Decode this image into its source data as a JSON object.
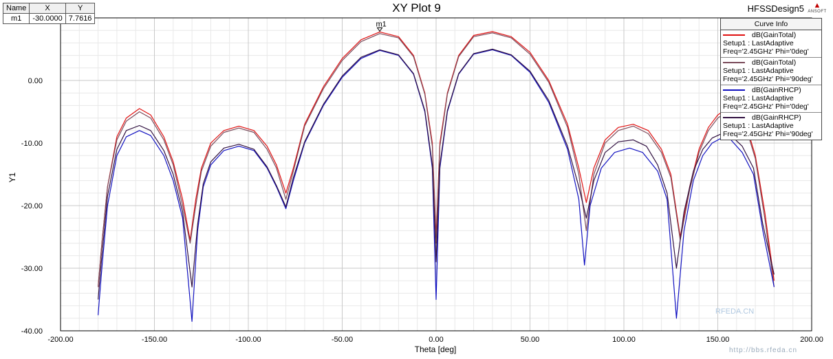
{
  "design_name": "HFSSDesign5",
  "logo_text": "ANSOFT",
  "marker_table": {
    "headers": [
      "Name",
      "X",
      "Y"
    ],
    "rows": [
      [
        "m1",
        "-30.0000",
        "7.7616"
      ]
    ]
  },
  "legend": {
    "title": "Curve Info",
    "entries": [
      {
        "name": "dB(GainTotal)",
        "line2": "Setup1 : LastAdaptive",
        "line3": "Freq='2.45GHz' Phi='0deg'",
        "color": "#e01010"
      },
      {
        "name": "dB(GainTotal)",
        "line2": "Setup1 : LastAdaptive",
        "line3": "Freq='2.45GHz' Phi='90deg'",
        "color": "#7a4a5a"
      },
      {
        "name": "dB(GainRHCP)",
        "line2": "Setup1 : LastAdaptive",
        "line3": "Freq='2.45GHz' Phi='0deg'",
        "color": "#1010c0"
      },
      {
        "name": "dB(GainRHCP)",
        "line2": "Setup1 : LastAdaptive",
        "line3": "Freq='2.45GHz' Phi='90deg'",
        "color": "#301040"
      }
    ]
  },
  "watermark": "RFEDA.CN",
  "watermark_url": "http://bbs.rfeda.cn",
  "chart_data": {
    "type": "line",
    "title": "XY Plot 9",
    "xlabel": "Theta [deg]",
    "ylabel": "Y1",
    "xlim": [
      -200,
      200
    ],
    "ylim": [
      -40,
      10
    ],
    "x_ticks": [
      -200,
      -150,
      -100,
      -50,
      0,
      50,
      100,
      150,
      200
    ],
    "x_tick_labels": [
      "-200.00",
      "-150.00",
      "-100.00",
      "-50.00",
      "0.00",
      "50.00",
      "100.00",
      "150.00",
      "200.00"
    ],
    "y_ticks": [
      0,
      -10,
      -20,
      -30,
      -40
    ],
    "y_tick_labels": [
      "0.00",
      "-10.00",
      "-20.00",
      "-30.00",
      "-40.00"
    ],
    "grid": true,
    "legend_position": "top-right",
    "marker": {
      "name": "m1",
      "x": -30,
      "y": 7.7616
    },
    "series": [
      {
        "name": "dB(GainTotal) Setup1 : LastAdaptive Freq='2.45GHz' Phi='0deg'",
        "color": "#e01010",
        "points": [
          [
            -180,
            -33
          ],
          [
            -178,
            -26
          ],
          [
            -175,
            -17
          ],
          [
            -170,
            -9
          ],
          [
            -165,
            -6
          ],
          [
            -158,
            -4.5
          ],
          [
            -152,
            -5.5
          ],
          [
            -145,
            -9
          ],
          [
            -140,
            -13
          ],
          [
            -135,
            -19
          ],
          [
            -131,
            -25.5
          ],
          [
            -128,
            -19
          ],
          [
            -125,
            -14
          ],
          [
            -120,
            -10
          ],
          [
            -113,
            -8
          ],
          [
            -105,
            -7.3
          ],
          [
            -97,
            -8
          ],
          [
            -90,
            -10.5
          ],
          [
            -85,
            -13.5
          ],
          [
            -80,
            -18
          ],
          [
            -76,
            -14
          ],
          [
            -70,
            -7
          ],
          [
            -60,
            -1
          ],
          [
            -50,
            3.5
          ],
          [
            -40,
            6.5
          ],
          [
            -30,
            7.76
          ],
          [
            -20,
            7
          ],
          [
            -12,
            4
          ],
          [
            -6,
            -2
          ],
          [
            -2,
            -10
          ],
          [
            0,
            -25
          ],
          [
            2,
            -10
          ],
          [
            6,
            -2
          ],
          [
            12,
            4
          ],
          [
            20,
            7.2
          ],
          [
            30,
            7.8
          ],
          [
            40,
            7
          ],
          [
            50,
            4.5
          ],
          [
            60,
            0
          ],
          [
            70,
            -7
          ],
          [
            76,
            -14
          ],
          [
            80,
            -19.5
          ],
          [
            84,
            -14
          ],
          [
            90,
            -9.5
          ],
          [
            97,
            -7.5
          ],
          [
            105,
            -7
          ],
          [
            113,
            -8
          ],
          [
            120,
            -11
          ],
          [
            125,
            -15
          ],
          [
            130,
            -25
          ],
          [
            135,
            -17
          ],
          [
            140,
            -11
          ],
          [
            145,
            -7.5
          ],
          [
            150,
            -5.5
          ],
          [
            155,
            -4.5
          ],
          [
            160,
            -5
          ],
          [
            165,
            -7
          ],
          [
            170,
            -12
          ],
          [
            175,
            -21
          ],
          [
            180,
            -32
          ]
        ]
      },
      {
        "name": "dB(GainTotal) Setup1 : LastAdaptive Freq='2.45GHz' Phi='90deg'",
        "color": "#7a4a5a",
        "points": [
          [
            -180,
            -33
          ],
          [
            -178,
            -26
          ],
          [
            -175,
            -17
          ],
          [
            -170,
            -9.5
          ],
          [
            -165,
            -6.5
          ],
          [
            -158,
            -5
          ],
          [
            -152,
            -6
          ],
          [
            -145,
            -9.5
          ],
          [
            -140,
            -13.5
          ],
          [
            -135,
            -20
          ],
          [
            -131,
            -26
          ],
          [
            -128,
            -20
          ],
          [
            -125,
            -14.5
          ],
          [
            -120,
            -10.5
          ],
          [
            -113,
            -8.3
          ],
          [
            -105,
            -7.6
          ],
          [
            -97,
            -8.3
          ],
          [
            -90,
            -11
          ],
          [
            -85,
            -14
          ],
          [
            -80,
            -19
          ],
          [
            -76,
            -14.5
          ],
          [
            -70,
            -7.3
          ],
          [
            -60,
            -1.3
          ],
          [
            -50,
            3.2
          ],
          [
            -40,
            6.2
          ],
          [
            -30,
            7.5
          ],
          [
            -20,
            6.8
          ],
          [
            -12,
            3.8
          ],
          [
            -6,
            -2.2
          ],
          [
            -2,
            -10.5
          ],
          [
            0,
            -26
          ],
          [
            2,
            -10.5
          ],
          [
            6,
            -2.2
          ],
          [
            12,
            3.8
          ],
          [
            20,
            7
          ],
          [
            30,
            7.6
          ],
          [
            40,
            6.8
          ],
          [
            50,
            4.2
          ],
          [
            60,
            -0.3
          ],
          [
            70,
            -7.5
          ],
          [
            76,
            -15
          ],
          [
            80,
            -24
          ],
          [
            84,
            -15
          ],
          [
            90,
            -10
          ],
          [
            97,
            -8
          ],
          [
            105,
            -7.3
          ],
          [
            113,
            -8.5
          ],
          [
            120,
            -11.5
          ],
          [
            125,
            -15.5
          ],
          [
            130,
            -25.5
          ],
          [
            135,
            -17.5
          ],
          [
            140,
            -11.5
          ],
          [
            145,
            -8
          ],
          [
            150,
            -6
          ],
          [
            155,
            -5
          ],
          [
            160,
            -5.5
          ],
          [
            165,
            -7.5
          ],
          [
            170,
            -12.5
          ],
          [
            175,
            -22
          ],
          [
            180,
            -33
          ]
        ]
      },
      {
        "name": "dB(GainRHCP) Setup1 : LastAdaptive Freq='2.45GHz' Phi='0deg'",
        "color": "#1010c0",
        "points": [
          [
            -180,
            -37.5
          ],
          [
            -178,
            -30
          ],
          [
            -175,
            -20
          ],
          [
            -170,
            -12
          ],
          [
            -165,
            -9
          ],
          [
            -158,
            -8
          ],
          [
            -152,
            -8.8
          ],
          [
            -145,
            -12
          ],
          [
            -140,
            -16
          ],
          [
            -135,
            -22
          ],
          [
            -130,
            -38.5
          ],
          [
            -127,
            -24
          ],
          [
            -124,
            -17
          ],
          [
            -120,
            -13.5
          ],
          [
            -113,
            -11.2
          ],
          [
            -105,
            -10.5
          ],
          [
            -97,
            -11.2
          ],
          [
            -90,
            -14
          ],
          [
            -85,
            -17
          ],
          [
            -80,
            -20.5
          ],
          [
            -76,
            -16
          ],
          [
            -70,
            -10
          ],
          [
            -60,
            -4
          ],
          [
            -50,
            0.5
          ],
          [
            -40,
            3.5
          ],
          [
            -30,
            4.8
          ],
          [
            -20,
            4
          ],
          [
            -12,
            1
          ],
          [
            -6,
            -5
          ],
          [
            -2,
            -14
          ],
          [
            0,
            -35
          ],
          [
            2,
            -14
          ],
          [
            6,
            -5
          ],
          [
            12,
            1
          ],
          [
            20,
            4.2
          ],
          [
            30,
            4.9
          ],
          [
            40,
            4
          ],
          [
            50,
            1.3
          ],
          [
            60,
            -3.5
          ],
          [
            70,
            -11
          ],
          [
            76,
            -19
          ],
          [
            79,
            -29.5
          ],
          [
            82,
            -20
          ],
          [
            88,
            -14
          ],
          [
            95,
            -11.5
          ],
          [
            103,
            -10.8
          ],
          [
            110,
            -11.5
          ],
          [
            118,
            -14.5
          ],
          [
            123,
            -19
          ],
          [
            128,
            -38
          ],
          [
            132,
            -24
          ],
          [
            137,
            -16
          ],
          [
            142,
            -12
          ],
          [
            147,
            -10
          ],
          [
            152,
            -9.2
          ],
          [
            157,
            -9.5
          ],
          [
            163,
            -11.5
          ],
          [
            169,
            -15
          ],
          [
            174,
            -24
          ],
          [
            180,
            -33
          ]
        ]
      },
      {
        "name": "dB(GainRHCP) Setup1 : LastAdaptive Freq='2.45GHz' Phi='90deg'",
        "color": "#301040",
        "points": [
          [
            -180,
            -35
          ],
          [
            -178,
            -28
          ],
          [
            -175,
            -18.5
          ],
          [
            -170,
            -11
          ],
          [
            -165,
            -8
          ],
          [
            -158,
            -7.2
          ],
          [
            -152,
            -8
          ],
          [
            -145,
            -11.2
          ],
          [
            -140,
            -15
          ],
          [
            -135,
            -21
          ],
          [
            -130,
            -33
          ],
          [
            -127,
            -23
          ],
          [
            -124,
            -16.5
          ],
          [
            -120,
            -13
          ],
          [
            -113,
            -10.8
          ],
          [
            -105,
            -10.2
          ],
          [
            -97,
            -11
          ],
          [
            -90,
            -13.8
          ],
          [
            -85,
            -16.8
          ],
          [
            -80,
            -20.2
          ],
          [
            -76,
            -15.5
          ],
          [
            -70,
            -9.8
          ],
          [
            -60,
            -3.8
          ],
          [
            -50,
            0.7
          ],
          [
            -40,
            3.7
          ],
          [
            -30,
            4.9
          ],
          [
            -20,
            4.1
          ],
          [
            -12,
            1.1
          ],
          [
            -6,
            -4.8
          ],
          [
            -2,
            -13.5
          ],
          [
            0,
            -29
          ],
          [
            2,
            -13.5
          ],
          [
            6,
            -4.8
          ],
          [
            12,
            1.1
          ],
          [
            20,
            4.3
          ],
          [
            30,
            5
          ],
          [
            40,
            4.1
          ],
          [
            50,
            1.5
          ],
          [
            60,
            -3.2
          ],
          [
            70,
            -10.5
          ],
          [
            76,
            -17
          ],
          [
            80,
            -22
          ],
          [
            84,
            -16
          ],
          [
            90,
            -11.5
          ],
          [
            97,
            -9.8
          ],
          [
            105,
            -9.5
          ],
          [
            112,
            -10.5
          ],
          [
            118,
            -13.5
          ],
          [
            123,
            -18
          ],
          [
            128,
            -30
          ],
          [
            132,
            -21
          ],
          [
            137,
            -14.5
          ],
          [
            142,
            -11
          ],
          [
            147,
            -9.2
          ],
          [
            152,
            -8.5
          ],
          [
            157,
            -8.8
          ],
          [
            163,
            -10.5
          ],
          [
            169,
            -14
          ],
          [
            174,
            -23
          ],
          [
            180,
            -31
          ]
        ]
      }
    ]
  }
}
